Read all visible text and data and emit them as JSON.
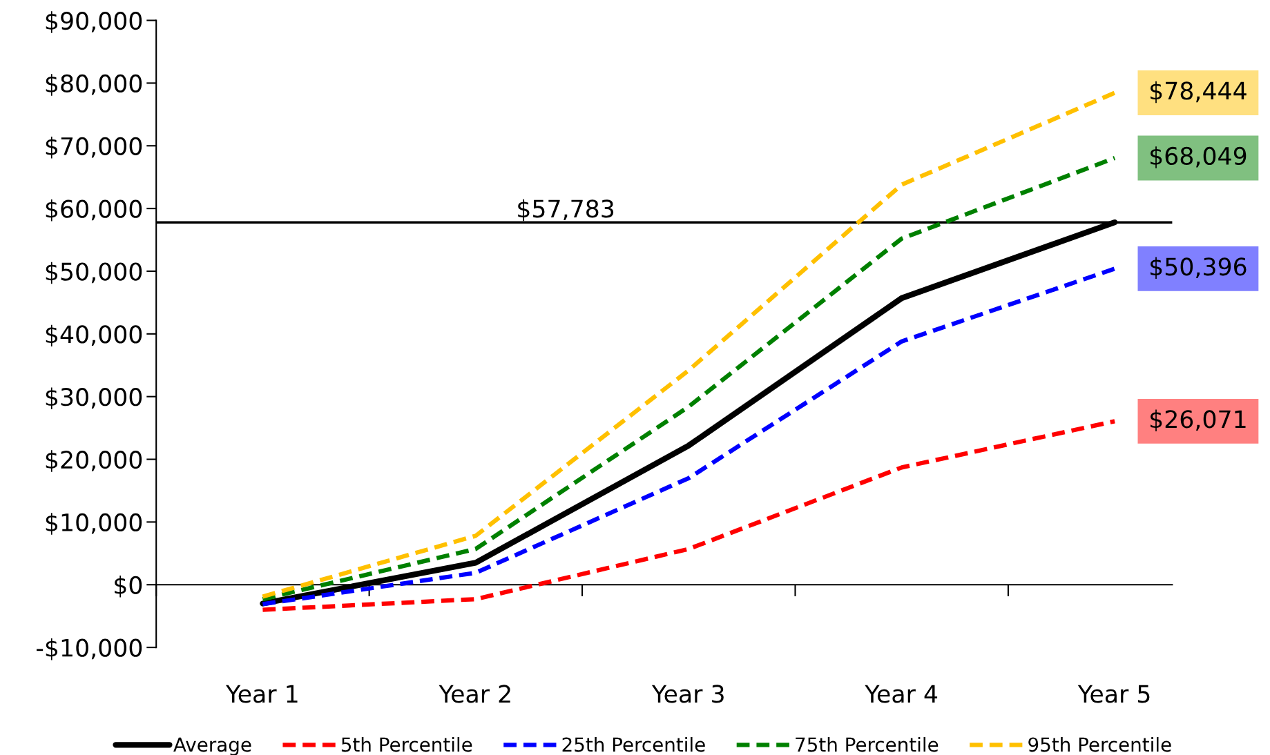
{
  "chart_data": {
    "type": "line",
    "categories": [
      "Year 1",
      "Year 2",
      "Year 3",
      "Year 4",
      "Year 5"
    ],
    "ylim": [
      -10000,
      90000
    ],
    "yticks": [
      {
        "value": -10000,
        "label": "-$10,000"
      },
      {
        "value": 0,
        "label": "$0"
      },
      {
        "value": 10000,
        "label": "$10,000"
      },
      {
        "value": 20000,
        "label": "$20,000"
      },
      {
        "value": 30000,
        "label": "$30,000"
      },
      {
        "value": 40000,
        "label": "$40,000"
      },
      {
        "value": 50000,
        "label": "$50,000"
      },
      {
        "value": 60000,
        "label": "$60,000"
      },
      {
        "value": 70000,
        "label": "$70,000"
      },
      {
        "value": 80000,
        "label": "$80,000"
      },
      {
        "value": 90000,
        "label": "$90,000"
      }
    ],
    "series": [
      {
        "name": "Average",
        "color": "#000000",
        "line_style": "solid",
        "values": [
          -3000,
          3500,
          22200,
          45700,
          57800
        ]
      },
      {
        "name": "5th Percentile",
        "color": "#ff0000",
        "line_style": "dashed",
        "values": [
          -4000,
          -2300,
          5700,
          18700,
          26071
        ],
        "value_labels": [
          null,
          null,
          null,
          null,
          "$26,071"
        ]
      },
      {
        "name": "25th Percentile",
        "color": "#0000ff",
        "line_style": "dashed",
        "values": [
          -3100,
          1900,
          17000,
          38800,
          50396
        ],
        "value_labels": [
          null,
          null,
          null,
          null,
          "$50,396"
        ]
      },
      {
        "name": "75th Percentile",
        "color": "#008000",
        "line_style": "dashed",
        "values": [
          -2300,
          5700,
          28400,
          55200,
          68049
        ],
        "value_labels": [
          null,
          null,
          null,
          null,
          "$68,049"
        ]
      },
      {
        "name": "95th Percentile",
        "color": "#ffc000",
        "line_style": "dashed",
        "values": [
          -1900,
          7800,
          34200,
          63800,
          78444
        ],
        "value_labels": [
          null,
          null,
          null,
          null,
          "$78,444"
        ]
      }
    ],
    "ref_lines": [
      {
        "axis": "y",
        "value": 57783,
        "label": "$57,783",
        "color": "#000000"
      }
    ],
    "legend": "bottom",
    "marker": "none"
  }
}
